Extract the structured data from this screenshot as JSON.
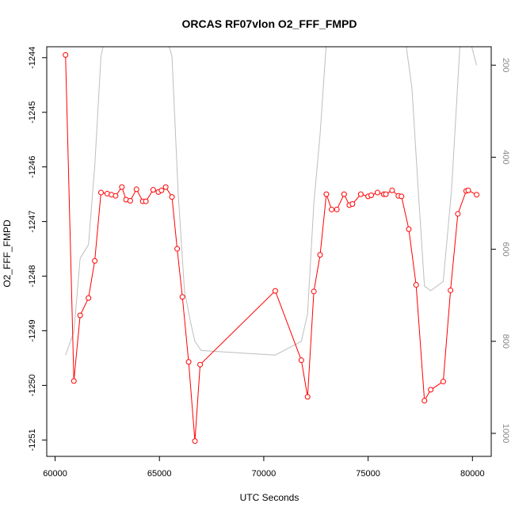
{
  "chart_data": {
    "type": "line",
    "title": "ORCAS RF07vlon O2_FFF_FMPD",
    "xlabel": "UTC Seconds",
    "ylabel": "O2_FFF_FMPD",
    "xlim": [
      59600,
      80900
    ],
    "ylim": [
      -1251.3,
      -1243.8
    ],
    "x_ticks": [
      60000,
      65000,
      70000,
      75000,
      80000
    ],
    "y_ticks": [
      -1244,
      -1245,
      -1246,
      -1247,
      -1248,
      -1249,
      -1250,
      -1251
    ],
    "y2lim": [
      1050,
      160
    ],
    "y2_ticks": [
      200,
      400,
      600,
      800,
      1000
    ],
    "grid": false,
    "series": [
      {
        "name": "",
        "color": "#ff0000",
        "marker": "open-circle",
        "x": [
          60500,
          60900,
          61200,
          61600,
          61900,
          62200,
          62500,
          62700,
          62900,
          63200,
          63400,
          63600,
          63900,
          64200,
          64350,
          64700,
          64950,
          65100,
          65300,
          65600,
          65850,
          66100,
          66400,
          66700,
          66950,
          70550,
          71800,
          72100,
          72400,
          72700,
          73000,
          73250,
          73500,
          73850,
          74100,
          74250,
          74650,
          75000,
          75150,
          75450,
          75750,
          75850,
          76150,
          76450,
          76600,
          76950,
          77300,
          77700,
          78000,
          78600,
          78950,
          79300,
          79700,
          79800,
          80200
        ],
        "y": [
          -1243.95,
          -1249.92,
          -1248.72,
          -1248.4,
          -1247.72,
          -1246.47,
          -1246.49,
          -1246.51,
          -1246.53,
          -1246.37,
          -1246.6,
          -1246.62,
          -1246.41,
          -1246.63,
          -1246.63,
          -1246.42,
          -1246.46,
          -1246.43,
          -1246.37,
          -1246.55,
          -1247.5,
          -1248.38,
          -1249.57,
          -1251.02,
          -1249.62,
          -1248.27,
          -1249.54,
          -1250.21,
          -1248.28,
          -1247.61,
          -1246.5,
          -1246.78,
          -1246.78,
          -1246.5,
          -1246.7,
          -1246.68,
          -1246.5,
          -1246.54,
          -1246.52,
          -1246.47,
          -1246.5,
          -1246.5,
          -1246.43,
          -1246.53,
          -1246.54,
          -1247.14,
          -1248.16,
          -1250.28,
          -1250.08,
          -1249.93,
          -1248.26,
          -1246.86,
          -1246.44,
          -1246.43,
          -1246.51
        ]
      },
      {
        "name": "",
        "color": "#bebebe",
        "axis": "right",
        "x": [
          60500,
          60900,
          61200,
          61600,
          61900,
          62200,
          62500,
          65200,
          65600,
          65900,
          66200,
          66500,
          66700,
          67000,
          70550,
          71800,
          72100,
          72400,
          72700,
          73000,
          76800,
          77100,
          77400,
          77700,
          78000,
          78600,
          79000,
          79500,
          80200
        ],
        "y": [
          830,
          780,
          620,
          590,
          420,
          180,
          120,
          120,
          180,
          480,
          690,
          760,
          800,
          820,
          830,
          800,
          740,
          500,
          350,
          150,
          150,
          250,
          470,
          680,
          690,
          670,
          470,
          80,
          200
        ]
      }
    ]
  }
}
